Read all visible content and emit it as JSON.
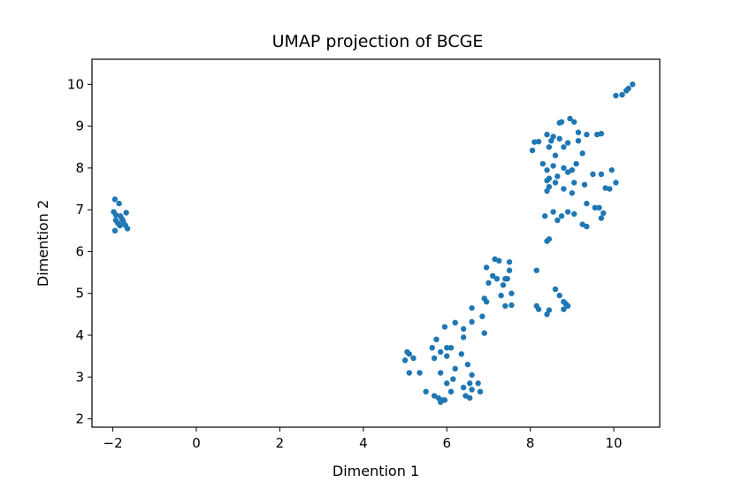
{
  "chart_data": {
    "type": "scatter",
    "title": "UMAP projection of BCGE",
    "xlabel": "Dimention 1",
    "ylabel": "Dimention 2",
    "xlim": [
      -2.5,
      11.1
    ],
    "ylim": [
      1.8,
      10.6
    ],
    "xticks": [
      -2,
      0,
      2,
      4,
      6,
      8,
      10
    ],
    "xtick_labels": [
      "−2",
      "0",
      "2",
      "4",
      "6",
      "8",
      "10"
    ],
    "yticks": [
      2,
      3,
      4,
      5,
      6,
      7,
      8,
      9,
      10
    ],
    "ytick_labels": [
      "2",
      "3",
      "4",
      "5",
      "6",
      "7",
      "8",
      "9",
      "10"
    ],
    "grid": false,
    "legend": false,
    "marker_color": "#1f77b4",
    "series": [
      {
        "points": [
          [
            -1.95,
            7.25
          ],
          [
            -1.85,
            7.15
          ],
          [
            -1.98,
            6.95
          ],
          [
            -1.93,
            6.88
          ],
          [
            -1.82,
            6.85
          ],
          [
            -1.68,
            6.93
          ],
          [
            -1.78,
            6.78
          ],
          [
            -1.93,
            6.75
          ],
          [
            -1.75,
            6.72
          ],
          [
            -1.88,
            6.68
          ],
          [
            -1.83,
            6.62
          ],
          [
            -1.95,
            6.5
          ],
          [
            -1.7,
            6.63
          ],
          [
            -1.65,
            6.55
          ],
          [
            10.45,
            10.0
          ],
          [
            10.35,
            9.9
          ],
          [
            10.3,
            9.85
          ],
          [
            10.2,
            9.75
          ],
          [
            10.05,
            9.73
          ],
          [
            8.75,
            9.1
          ],
          [
            8.7,
            9.08
          ],
          [
            8.95,
            9.18
          ],
          [
            9.05,
            9.1
          ],
          [
            8.4,
            8.8
          ],
          [
            8.55,
            8.75
          ],
          [
            9.15,
            8.85
          ],
          [
            9.35,
            8.8
          ],
          [
            9.7,
            8.82
          ],
          [
            9.6,
            8.8
          ],
          [
            8.7,
            8.7
          ],
          [
            8.2,
            8.63
          ],
          [
            8.1,
            8.62
          ],
          [
            8.5,
            8.65
          ],
          [
            8.9,
            8.6
          ],
          [
            9.15,
            8.65
          ],
          [
            8.05,
            8.42
          ],
          [
            8.45,
            8.5
          ],
          [
            8.8,
            8.5
          ],
          [
            9.25,
            8.35
          ],
          [
            8.6,
            8.3
          ],
          [
            8.3,
            8.1
          ],
          [
            8.55,
            8.05
          ],
          [
            8.8,
            8.0
          ],
          [
            9.1,
            8.1
          ],
          [
            9.0,
            7.95
          ],
          [
            8.4,
            7.95
          ],
          [
            8.9,
            7.9
          ],
          [
            8.65,
            7.8
          ],
          [
            9.5,
            7.85
          ],
          [
            9.7,
            7.85
          ],
          [
            9.95,
            7.95
          ],
          [
            8.45,
            7.75
          ],
          [
            8.4,
            7.7
          ],
          [
            8.6,
            7.65
          ],
          [
            9.3,
            7.6
          ],
          [
            9.05,
            7.65
          ],
          [
            10.05,
            7.65
          ],
          [
            8.45,
            7.55
          ],
          [
            8.8,
            7.5
          ],
          [
            9.8,
            7.52
          ],
          [
            9.9,
            7.5
          ],
          [
            8.4,
            7.45
          ],
          [
            9.0,
            7.4
          ],
          [
            9.35,
            7.15
          ],
          [
            9.55,
            7.05
          ],
          [
            9.65,
            7.05
          ],
          [
            8.55,
            6.95
          ],
          [
            8.9,
            6.95
          ],
          [
            9.05,
            6.9
          ],
          [
            9.75,
            6.92
          ],
          [
            8.35,
            6.85
          ],
          [
            8.75,
            6.85
          ],
          [
            9.7,
            6.8
          ],
          [
            8.65,
            6.75
          ],
          [
            9.25,
            6.65
          ],
          [
            9.35,
            6.6
          ],
          [
            8.45,
            6.3
          ],
          [
            8.4,
            6.25
          ],
          [
            7.15,
            5.82
          ],
          [
            7.25,
            5.78
          ],
          [
            7.5,
            5.75
          ],
          [
            6.95,
            5.62
          ],
          [
            7.5,
            5.55
          ],
          [
            7.1,
            5.42
          ],
          [
            7.2,
            5.35
          ],
          [
            7.4,
            5.35
          ],
          [
            7.45,
            5.35
          ],
          [
            7.0,
            5.25
          ],
          [
            7.35,
            5.2
          ],
          [
            7.55,
            5.0
          ],
          [
            6.9,
            4.88
          ],
          [
            6.95,
            4.8
          ],
          [
            7.3,
            4.95
          ],
          [
            7.55,
            4.72
          ],
          [
            7.4,
            4.7
          ],
          [
            6.6,
            4.65
          ],
          [
            6.85,
            4.45
          ],
          [
            6.6,
            4.32
          ],
          [
            6.2,
            4.3
          ],
          [
            6.4,
            4.15
          ],
          [
            6.9,
            4.05
          ],
          [
            5.95,
            4.2
          ],
          [
            5.75,
            3.9
          ],
          [
            6.4,
            3.95
          ],
          [
            6.0,
            3.7
          ],
          [
            6.1,
            3.7
          ],
          [
            5.65,
            3.7
          ],
          [
            5.85,
            3.6
          ],
          [
            6.35,
            3.55
          ],
          [
            5.05,
            3.6
          ],
          [
            5.1,
            3.55
          ],
          [
            5.2,
            3.45
          ],
          [
            5.0,
            3.4
          ],
          [
            6.0,
            3.5
          ],
          [
            5.7,
            3.45
          ],
          [
            6.5,
            3.3
          ],
          [
            6.2,
            3.2
          ],
          [
            5.1,
            3.1
          ],
          [
            5.35,
            3.1
          ],
          [
            5.85,
            3.1
          ],
          [
            6.6,
            3.05
          ],
          [
            6.15,
            2.95
          ],
          [
            6.0,
            2.85
          ],
          [
            6.55,
            2.85
          ],
          [
            6.75,
            2.85
          ],
          [
            6.4,
            2.75
          ],
          [
            5.5,
            2.65
          ],
          [
            6.6,
            2.7
          ],
          [
            6.1,
            2.65
          ],
          [
            6.8,
            2.65
          ],
          [
            5.7,
            2.55
          ],
          [
            5.8,
            2.5
          ],
          [
            6.45,
            2.55
          ],
          [
            6.55,
            2.5
          ],
          [
            5.95,
            2.45
          ],
          [
            5.9,
            2.45
          ],
          [
            5.85,
            2.4
          ],
          [
            8.15,
            5.55
          ],
          [
            8.6,
            5.1
          ],
          [
            8.7,
            4.95
          ],
          [
            8.8,
            4.8
          ],
          [
            8.85,
            4.75
          ],
          [
            8.9,
            4.7
          ],
          [
            8.15,
            4.7
          ],
          [
            8.2,
            4.62
          ],
          [
            8.45,
            4.6
          ],
          [
            8.8,
            4.62
          ],
          [
            8.4,
            4.5
          ]
        ]
      }
    ]
  }
}
